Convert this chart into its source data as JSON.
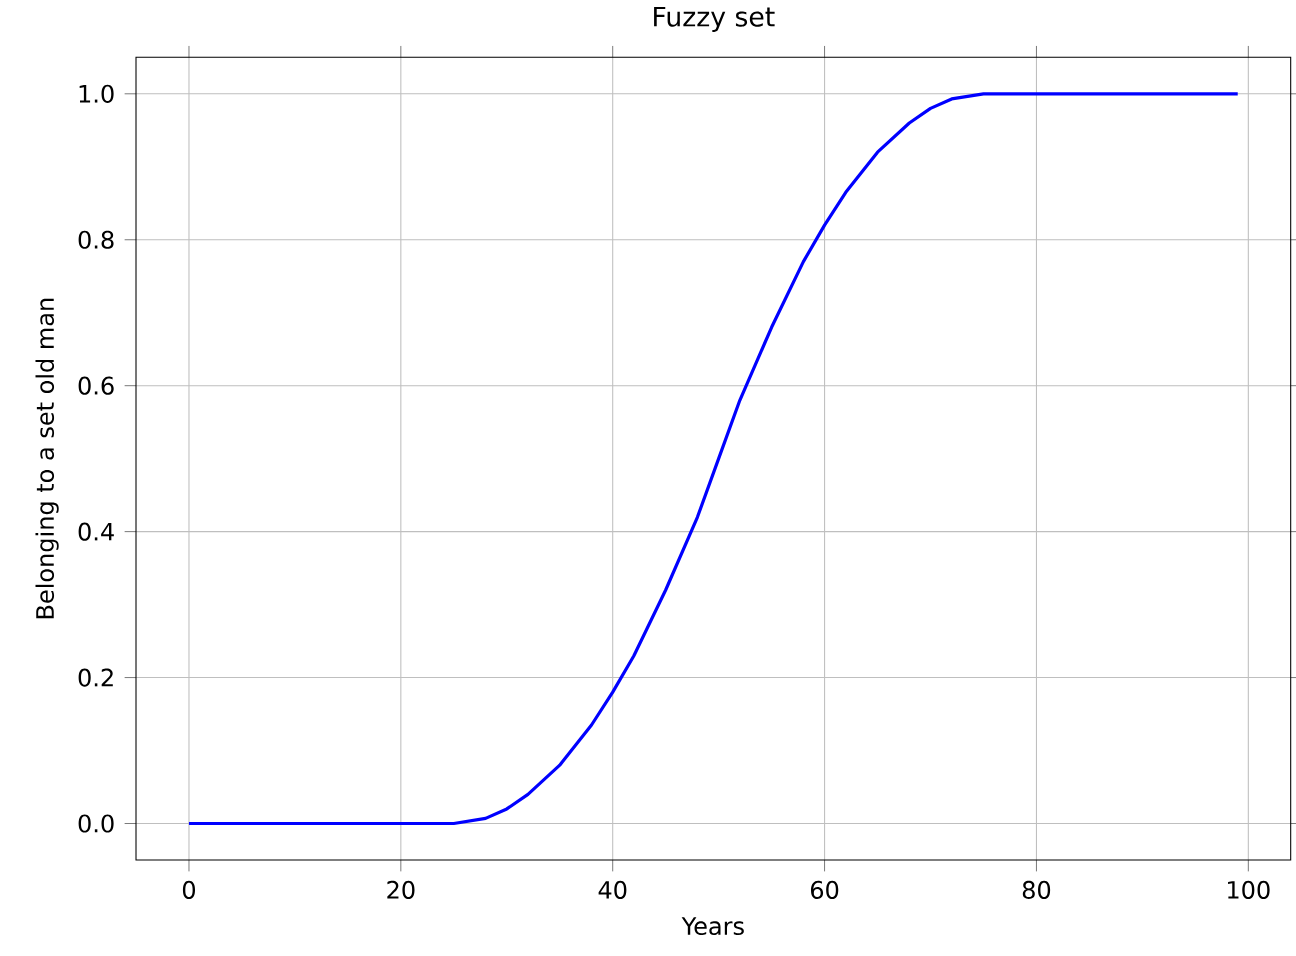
{
  "chart_data": {
    "type": "line",
    "title": "Fuzzy set",
    "xlabel": "Years",
    "ylabel": "Belonging to a set old man",
    "x": [
      0,
      10,
      20,
      25,
      28,
      30,
      32,
      35,
      38,
      40,
      42,
      45,
      48,
      50,
      52,
      55,
      58,
      60,
      62,
      65,
      68,
      70,
      72,
      75,
      80,
      90,
      99
    ],
    "series": [
      {
        "color": "#0000ff",
        "values": [
          0,
          0,
          0,
          0,
          0.007,
          0.02,
          0.04,
          0.08,
          0.135,
          0.18,
          0.23,
          0.32,
          0.42,
          0.5,
          0.58,
          0.68,
          0.77,
          0.82,
          0.865,
          0.92,
          0.96,
          0.98,
          0.993,
          1,
          1,
          1,
          1
        ]
      }
    ],
    "xlim": [
      -5,
      104
    ],
    "ylim": [
      -0.05,
      1.05
    ],
    "xticks": [
      0,
      20,
      40,
      60,
      80,
      100
    ],
    "yticks": [
      {
        "value": 0,
        "label": "0.0"
      },
      {
        "value": 0.2,
        "label": "0.2"
      },
      {
        "value": 0.4,
        "label": "0.4"
      },
      {
        "value": 0.6,
        "label": "0.6"
      },
      {
        "value": 0.8,
        "label": "0.8"
      },
      {
        "value": 1,
        "label": "1.0"
      }
    ],
    "grid": true
  }
}
